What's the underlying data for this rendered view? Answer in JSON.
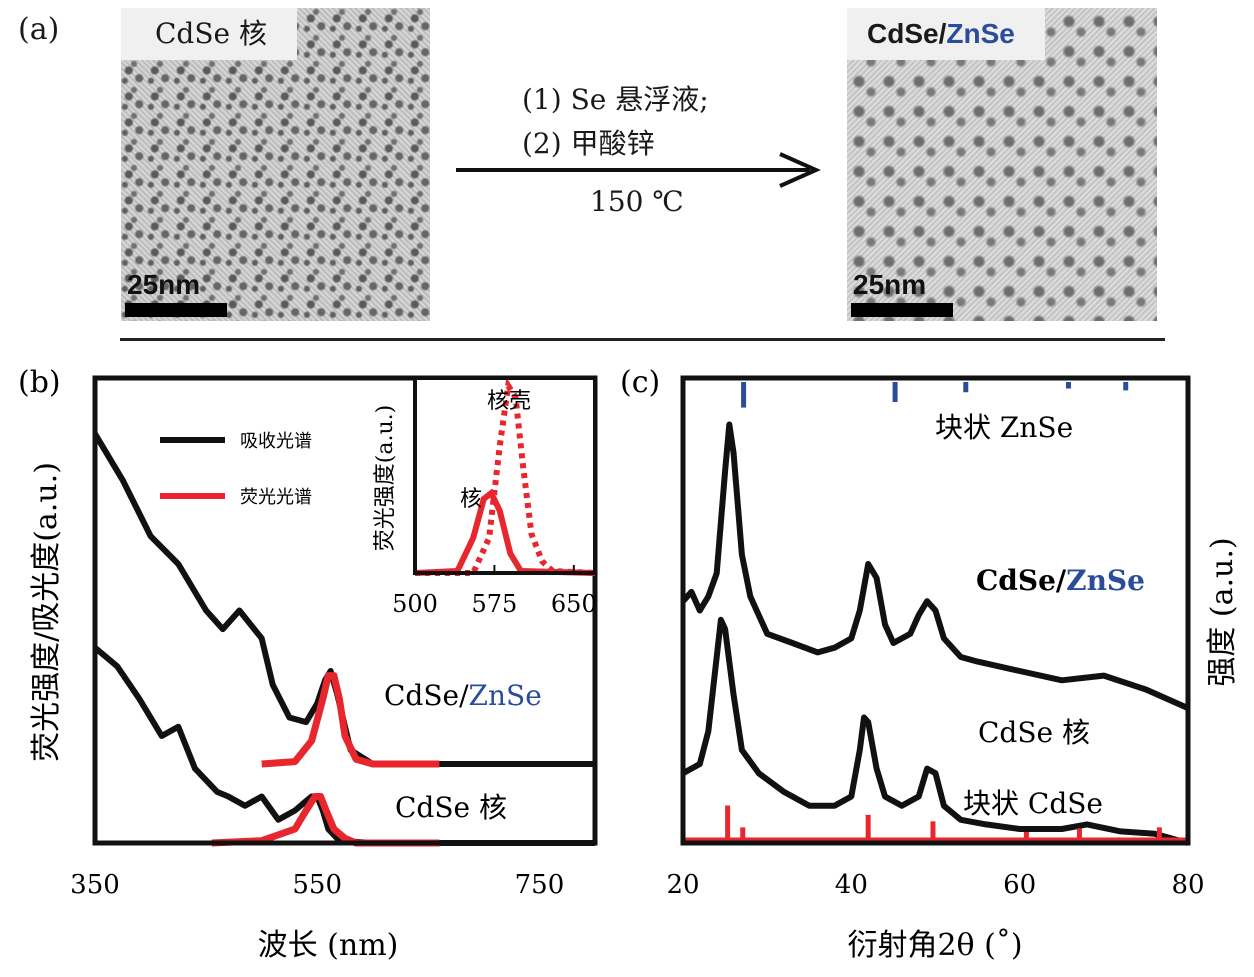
{
  "panel_a": {
    "label": "(a)",
    "left_image": {
      "label": "CdSe 核",
      "scale": "25nm"
    },
    "right_image": {
      "label_part1": "CdSe/",
      "label_part2": "ZnSe",
      "scale": "25nm"
    },
    "step1": "(1) Se 悬浮液;",
    "step2": "(2) 甲酸锌",
    "temperature": "150 ℃"
  },
  "colors": {
    "blue": "#2b4c9b",
    "red": "#e8262d",
    "black": "#111111"
  },
  "chart_data": [
    {
      "id": "b",
      "panel_label": "(b)",
      "type": "line",
      "xlabel": "波长 (nm)",
      "ylabel": "荧光强度/吸光度(a.u.)",
      "xlim": [
        350,
        800
      ],
      "xticks": [
        350,
        550,
        750
      ],
      "legend": [
        "吸收光谱",
        "荧光光谱"
      ],
      "labels": {
        "core": "CdSe 核",
        "shell_part1": "CdSe/",
        "shell_part2": "ZnSe"
      },
      "series": [
        {
          "name": "吸收光谱",
          "group": "CdSe/ZnSe",
          "x": [
            350,
            375,
            400,
            425,
            450,
            465,
            480,
            500,
            510,
            525,
            540,
            550,
            557,
            562,
            568,
            580,
            600,
            800
          ],
          "y": [
            0.88,
            0.78,
            0.66,
            0.6,
            0.5,
            0.46,
            0.5,
            0.44,
            0.34,
            0.27,
            0.26,
            0.3,
            0.35,
            0.37,
            0.32,
            0.2,
            0.17,
            0.17
          ]
        },
        {
          "name": "荧光光谱",
          "group": "CdSe/ZnSe",
          "x": [
            500,
            530,
            545,
            555,
            560,
            565,
            570,
            575,
            585,
            600,
            660
          ],
          "y": [
            0.17,
            0.175,
            0.22,
            0.31,
            0.36,
            0.36,
            0.31,
            0.23,
            0.18,
            0.17,
            0.17
          ]
        },
        {
          "name": "吸收光谱",
          "group": "CdSe 核",
          "x": [
            350,
            370,
            390,
            410,
            425,
            440,
            460,
            470,
            485,
            500,
            515,
            530,
            540,
            545,
            550,
            555,
            560,
            570,
            600,
            800
          ],
          "y": [
            0.42,
            0.38,
            0.31,
            0.23,
            0.25,
            0.16,
            0.11,
            0.1,
            0.08,
            0.1,
            0.05,
            0.07,
            0.09,
            0.1,
            0.1,
            0.07,
            0.03,
            0.005,
            0.0,
            0.0
          ]
        },
        {
          "name": "荧光光谱",
          "group": "CdSe 核",
          "x": [
            455,
            500,
            530,
            540,
            548,
            553,
            558,
            565,
            575,
            585,
            660
          ],
          "y": [
            0.0,
            0.005,
            0.03,
            0.07,
            0.1,
            0.1,
            0.07,
            0.03,
            0.01,
            0.0,
            0.0
          ]
        }
      ],
      "inset": {
        "ylabel": "荧光强度(a.u.)",
        "xlim": [
          500,
          670
        ],
        "xticks": [
          500,
          575,
          650
        ],
        "core_label": "核",
        "shell_label": "核壳",
        "series": [
          {
            "name": "核",
            "x": [
              500,
              540,
              555,
              565,
              572,
              580,
              590,
              600,
              670
            ],
            "y": [
              0.0,
              0.01,
              0.18,
              0.38,
              0.41,
              0.32,
              0.1,
              0.01,
              0.0
            ]
          },
          {
            "name": "核壳",
            "x": [
              500,
              555,
              570,
              580,
              588,
              595,
              602,
              610,
              620,
              630,
              670
            ],
            "y": [
              0.0,
              0.0,
              0.18,
              0.65,
              0.96,
              0.9,
              0.55,
              0.2,
              0.06,
              0.01,
              0.0
            ]
          }
        ]
      }
    },
    {
      "id": "c",
      "panel_label": "(c)",
      "type": "line",
      "xlabel": "衍射角2θ (˚)",
      "ylabel": "强度 (a.u.)",
      "xlim": [
        20,
        80
      ],
      "xticks": [
        20,
        40,
        60,
        80
      ],
      "labels": {
        "bulk_znse": "块状 ZnSe",
        "shell_part1": "CdSe/",
        "shell_part2": "ZnSe",
        "core": "CdSe 核",
        "bulk_cdse": "块状 CdSe"
      },
      "series": [
        {
          "name": "CdSe/ZnSe",
          "x": [
            20,
            21,
            22,
            23,
            24,
            25,
            25.5,
            26,
            27,
            28,
            30,
            33,
            36,
            38,
            40,
            41,
            42,
            43,
            44,
            45,
            47,
            48,
            49,
            50,
            51,
            53,
            55,
            60,
            65,
            70,
            75,
            80
          ],
          "y": [
            0.52,
            0.54,
            0.5,
            0.53,
            0.58,
            0.8,
            0.9,
            0.84,
            0.62,
            0.53,
            0.45,
            0.43,
            0.41,
            0.42,
            0.44,
            0.5,
            0.6,
            0.57,
            0.47,
            0.43,
            0.45,
            0.49,
            0.52,
            0.5,
            0.44,
            0.4,
            0.39,
            0.37,
            0.35,
            0.36,
            0.33,
            0.29
          ]
        },
        {
          "name": "CdSe 核",
          "x": [
            20,
            22,
            23,
            24,
            24.5,
            25,
            26,
            27,
            29,
            32,
            35,
            38,
            40,
            41,
            41.5,
            42,
            43,
            44,
            46,
            48,
            49,
            50,
            51,
            53,
            56,
            60,
            65,
            68,
            72,
            76,
            80
          ],
          "y": [
            0.15,
            0.17,
            0.24,
            0.4,
            0.48,
            0.46,
            0.32,
            0.2,
            0.15,
            0.11,
            0.08,
            0.08,
            0.1,
            0.2,
            0.27,
            0.26,
            0.16,
            0.1,
            0.08,
            0.1,
            0.16,
            0.15,
            0.08,
            0.05,
            0.04,
            0.03,
            0.03,
            0.04,
            0.025,
            0.02,
            0.0
          ]
        }
      ],
      "reference_lines": [
        {
          "name": "块状 ZnSe",
          "positions": [
            27.2,
            45.2,
            53.6,
            65.8,
            72.6
          ],
          "heights": [
            0.055,
            0.043,
            0.022,
            0.014,
            0.018
          ]
        },
        {
          "name": "块状 CdSe",
          "positions": [
            25.3,
            27.1,
            42.0,
            49.7,
            60.8,
            67.1,
            76.6
          ],
          "heights": [
            0.072,
            0.025,
            0.052,
            0.038,
            0.015,
            0.023,
            0.025
          ]
        }
      ]
    }
  ]
}
